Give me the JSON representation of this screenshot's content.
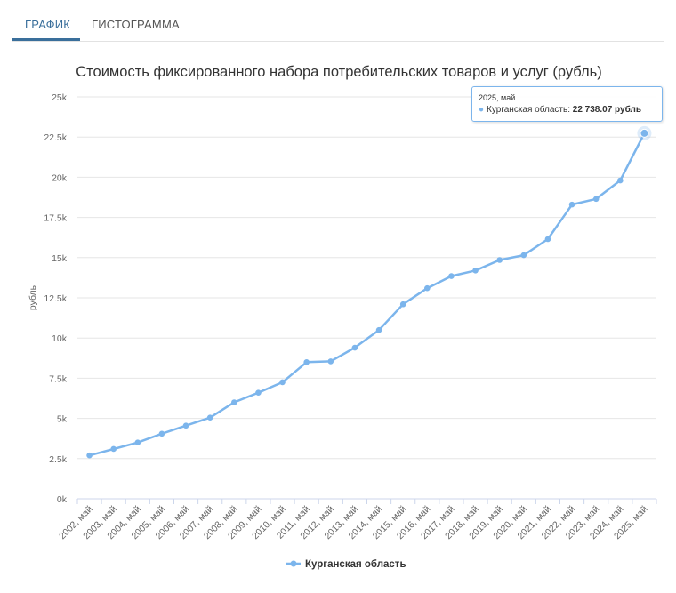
{
  "tabs": [
    {
      "label": "ГРАФИК",
      "active": true
    },
    {
      "label": "ГИСТОГРАММА",
      "active": false
    }
  ],
  "chart_data": {
    "type": "line",
    "title": "Стоимость фиксированного набора потребительских товаров и услуг (рубль)",
    "xlabel": "",
    "ylabel": "рубль",
    "ylim": [
      0,
      25000
    ],
    "yticks": [
      "0k",
      "2.5k",
      "5k",
      "7.5k",
      "10k",
      "12.5k",
      "15k",
      "17.5k",
      "20k",
      "22.5k",
      "25k"
    ],
    "grid": true,
    "legend_placement": "bottom-center",
    "categories": [
      "2002, май",
      "2003, май",
      "2004, май",
      "2005, май",
      "2006, май",
      "2007, май",
      "2008, май",
      "2009, май",
      "2010, май",
      "2011, май",
      "2012, май",
      "2013, май",
      "2014, май",
      "2015, май",
      "2016, май",
      "2017, май",
      "2018, май",
      "2019, май",
      "2020, май",
      "2021, май",
      "2022, май",
      "2023, май",
      "2024, май",
      "2025, май"
    ],
    "series": [
      {
        "name": "Курганская область",
        "color": "#7cb5ec",
        "values": [
          2700,
          3100,
          3500,
          4050,
          4550,
          5050,
          6000,
          6600,
          7250,
          8500,
          8550,
          9400,
          10500,
          12100,
          13100,
          13850,
          14200,
          14850,
          15150,
          16150,
          18300,
          18650,
          19800,
          22738.07
        ]
      }
    ]
  },
  "tooltip": {
    "date": "2025, май",
    "series": "Курганская область:",
    "value": "22 738.07 рубль"
  }
}
